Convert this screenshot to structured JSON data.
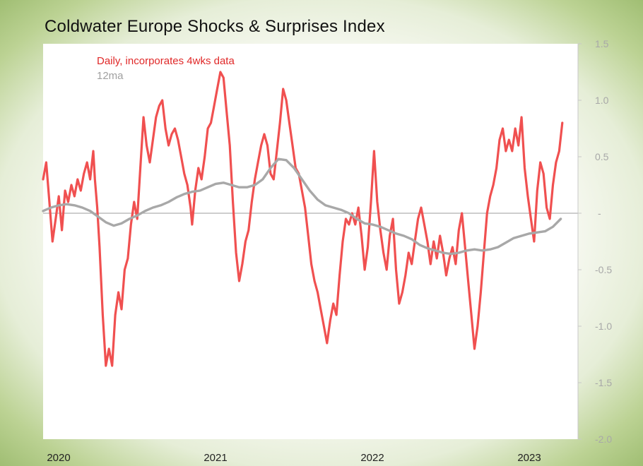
{
  "chart_data": {
    "type": "line",
    "title": "Coldwater Europe Shocks & Surprises Index",
    "ylim": [
      -2.0,
      1.5
    ],
    "y_ticks": [
      {
        "value": 1.5,
        "label": "1.5"
      },
      {
        "value": 1.0,
        "label": "1.0"
      },
      {
        "value": 0.5,
        "label": "0.5"
      },
      {
        "value": 0.0,
        "label": "-"
      },
      {
        "value": -0.5,
        "label": "-0.5"
      },
      {
        "value": -1.0,
        "label": "-1.0"
      },
      {
        "value": -1.5,
        "label": "-1.5"
      },
      {
        "value": -2.0,
        "label": "-2.0"
      }
    ],
    "x_ticks": [
      "2020",
      "2021",
      "2022",
      "2023"
    ],
    "xlim": [
      2020.0,
      2023.4
    ],
    "legend": {
      "placement": "top-left"
    },
    "series": [
      {
        "name": "Daily, incorporates 4wks data",
        "color": "#f05050",
        "points": [
          [
            2020.0,
            0.3
          ],
          [
            2020.02,
            0.45
          ],
          [
            2020.04,
            0.1
          ],
          [
            2020.06,
            -0.25
          ],
          [
            2020.08,
            -0.05
          ],
          [
            2020.1,
            0.15
          ],
          [
            2020.12,
            -0.15
          ],
          [
            2020.14,
            0.2
          ],
          [
            2020.16,
            0.1
          ],
          [
            2020.18,
            0.25
          ],
          [
            2020.2,
            0.15
          ],
          [
            2020.22,
            0.3
          ],
          [
            2020.24,
            0.2
          ],
          [
            2020.26,
            0.35
          ],
          [
            2020.28,
            0.45
          ],
          [
            2020.3,
            0.3
          ],
          [
            2020.32,
            0.55
          ],
          [
            2020.33,
            0.3
          ],
          [
            2020.345,
            0.05
          ],
          [
            2020.36,
            -0.3
          ],
          [
            2020.38,
            -0.9
          ],
          [
            2020.4,
            -1.35
          ],
          [
            2020.42,
            -1.2
          ],
          [
            2020.44,
            -1.35
          ],
          [
            2020.46,
            -0.9
          ],
          [
            2020.48,
            -0.7
          ],
          [
            2020.5,
            -0.85
          ],
          [
            2020.52,
            -0.5
          ],
          [
            2020.54,
            -0.4
          ],
          [
            2020.56,
            -0.1
          ],
          [
            2020.58,
            0.1
          ],
          [
            2020.6,
            -0.05
          ],
          [
            2020.62,
            0.4
          ],
          [
            2020.64,
            0.85
          ],
          [
            2020.66,
            0.6
          ],
          [
            2020.68,
            0.45
          ],
          [
            2020.7,
            0.65
          ],
          [
            2020.72,
            0.85
          ],
          [
            2020.74,
            0.95
          ],
          [
            2020.76,
            1.0
          ],
          [
            2020.78,
            0.75
          ],
          [
            2020.8,
            0.6
          ],
          [
            2020.82,
            0.7
          ],
          [
            2020.84,
            0.75
          ],
          [
            2020.86,
            0.65
          ],
          [
            2020.88,
            0.5
          ],
          [
            2020.9,
            0.35
          ],
          [
            2020.92,
            0.25
          ],
          [
            2020.94,
            0.05
          ],
          [
            2020.95,
            -0.1
          ],
          [
            2020.97,
            0.2
          ],
          [
            2020.99,
            0.4
          ],
          [
            2021.01,
            0.3
          ],
          [
            2021.03,
            0.5
          ],
          [
            2021.05,
            0.75
          ],
          [
            2021.07,
            0.8
          ],
          [
            2021.09,
            0.95
          ],
          [
            2021.11,
            1.1
          ],
          [
            2021.13,
            1.25
          ],
          [
            2021.15,
            1.2
          ],
          [
            2021.17,
            0.9
          ],
          [
            2021.19,
            0.6
          ],
          [
            2021.21,
            0.1
          ],
          [
            2021.23,
            -0.35
          ],
          [
            2021.25,
            -0.6
          ],
          [
            2021.27,
            -0.45
          ],
          [
            2021.29,
            -0.25
          ],
          [
            2021.31,
            -0.15
          ],
          [
            2021.33,
            0.1
          ],
          [
            2021.35,
            0.3
          ],
          [
            2021.37,
            0.45
          ],
          [
            2021.39,
            0.6
          ],
          [
            2021.41,
            0.7
          ],
          [
            2021.43,
            0.6
          ],
          [
            2021.45,
            0.35
          ],
          [
            2021.47,
            0.3
          ],
          [
            2021.49,
            0.55
          ],
          [
            2021.51,
            0.8
          ],
          [
            2021.53,
            1.1
          ],
          [
            2021.55,
            1.0
          ],
          [
            2021.57,
            0.8
          ],
          [
            2021.59,
            0.6
          ],
          [
            2021.61,
            0.4
          ],
          [
            2021.63,
            0.35
          ],
          [
            2021.65,
            0.2
          ],
          [
            2021.67,
            0.05
          ],
          [
            2021.69,
            -0.2
          ],
          [
            2021.71,
            -0.45
          ],
          [
            2021.73,
            -0.6
          ],
          [
            2021.75,
            -0.7
          ],
          [
            2021.77,
            -0.85
          ],
          [
            2021.79,
            -1.0
          ],
          [
            2021.81,
            -1.15
          ],
          [
            2021.83,
            -0.95
          ],
          [
            2021.85,
            -0.8
          ],
          [
            2021.87,
            -0.9
          ],
          [
            2021.89,
            -0.55
          ],
          [
            2021.91,
            -0.25
          ],
          [
            2021.93,
            -0.05
          ],
          [
            2021.95,
            -0.1
          ],
          [
            2021.97,
            0.0
          ],
          [
            2021.99,
            -0.1
          ],
          [
            2022.01,
            0.05
          ],
          [
            2022.03,
            -0.2
          ],
          [
            2022.05,
            -0.5
          ],
          [
            2022.07,
            -0.3
          ],
          [
            2022.09,
            0.1
          ],
          [
            2022.11,
            0.55
          ],
          [
            2022.13,
            0.1
          ],
          [
            2022.15,
            -0.15
          ],
          [
            2022.17,
            -0.35
          ],
          [
            2022.19,
            -0.5
          ],
          [
            2022.21,
            -0.2
          ],
          [
            2022.23,
            -0.05
          ],
          [
            2022.25,
            -0.5
          ],
          [
            2022.27,
            -0.8
          ],
          [
            2022.29,
            -0.7
          ],
          [
            2022.31,
            -0.55
          ],
          [
            2022.33,
            -0.35
          ],
          [
            2022.35,
            -0.45
          ],
          [
            2022.37,
            -0.25
          ],
          [
            2022.39,
            -0.05
          ],
          [
            2022.41,
            0.05
          ],
          [
            2022.43,
            -0.1
          ],
          [
            2022.45,
            -0.25
          ],
          [
            2022.47,
            -0.45
          ],
          [
            2022.49,
            -0.25
          ],
          [
            2022.51,
            -0.4
          ],
          [
            2022.53,
            -0.2
          ],
          [
            2022.55,
            -0.35
          ],
          [
            2022.57,
            -0.55
          ],
          [
            2022.59,
            -0.4
          ],
          [
            2022.61,
            -0.3
          ],
          [
            2022.63,
            -0.45
          ],
          [
            2022.65,
            -0.15
          ],
          [
            2022.67,
            0.0
          ],
          [
            2022.69,
            -0.3
          ],
          [
            2022.71,
            -0.6
          ],
          [
            2022.73,
            -0.9
          ],
          [
            2022.75,
            -1.2
          ],
          [
            2022.77,
            -1.0
          ],
          [
            2022.79,
            -0.7
          ],
          [
            2022.81,
            -0.35
          ],
          [
            2022.83,
            0.0
          ],
          [
            2022.85,
            0.15
          ],
          [
            2022.87,
            0.25
          ],
          [
            2022.89,
            0.4
          ],
          [
            2022.91,
            0.65
          ],
          [
            2022.93,
            0.75
          ],
          [
            2022.95,
            0.55
          ],
          [
            2022.97,
            0.65
          ],
          [
            2022.99,
            0.55
          ],
          [
            2023.01,
            0.75
          ],
          [
            2023.03,
            0.6
          ],
          [
            2023.05,
            0.85
          ],
          [
            2023.07,
            0.4
          ],
          [
            2023.09,
            0.15
          ],
          [
            2023.11,
            -0.05
          ],
          [
            2023.13,
            -0.25
          ],
          [
            2023.15,
            0.2
          ],
          [
            2023.17,
            0.45
          ],
          [
            2023.19,
            0.35
          ],
          [
            2023.21,
            0.05
          ],
          [
            2023.23,
            -0.05
          ],
          [
            2023.25,
            0.25
          ],
          [
            2023.27,
            0.45
          ],
          [
            2023.29,
            0.55
          ],
          [
            2023.31,
            0.8
          ]
        ]
      },
      {
        "name": "12ma",
        "color": "#a8a8a8",
        "points": [
          [
            2020.0,
            0.02
          ],
          [
            2020.05,
            0.05
          ],
          [
            2020.1,
            0.07
          ],
          [
            2020.15,
            0.08
          ],
          [
            2020.2,
            0.07
          ],
          [
            2020.25,
            0.05
          ],
          [
            2020.3,
            0.02
          ],
          [
            2020.35,
            -0.03
          ],
          [
            2020.4,
            -0.08
          ],
          [
            2020.45,
            -0.11
          ],
          [
            2020.5,
            -0.09
          ],
          [
            2020.55,
            -0.05
          ],
          [
            2020.6,
            -0.02
          ],
          [
            2020.65,
            0.02
          ],
          [
            2020.7,
            0.05
          ],
          [
            2020.75,
            0.07
          ],
          [
            2020.8,
            0.1
          ],
          [
            2020.85,
            0.14
          ],
          [
            2020.9,
            0.17
          ],
          [
            2020.95,
            0.19
          ],
          [
            2021.0,
            0.2
          ],
          [
            2021.05,
            0.23
          ],
          [
            2021.1,
            0.26
          ],
          [
            2021.15,
            0.27
          ],
          [
            2021.2,
            0.25
          ],
          [
            2021.25,
            0.23
          ],
          [
            2021.3,
            0.23
          ],
          [
            2021.35,
            0.25
          ],
          [
            2021.4,
            0.3
          ],
          [
            2021.45,
            0.4
          ],
          [
            2021.5,
            0.48
          ],
          [
            2021.55,
            0.47
          ],
          [
            2021.6,
            0.4
          ],
          [
            2021.65,
            0.3
          ],
          [
            2021.7,
            0.2
          ],
          [
            2021.75,
            0.12
          ],
          [
            2021.8,
            0.07
          ],
          [
            2021.85,
            0.05
          ],
          [
            2021.9,
            0.03
          ],
          [
            2021.95,
            0.0
          ],
          [
            2022.0,
            -0.05
          ],
          [
            2022.05,
            -0.09
          ],
          [
            2022.1,
            -0.1
          ],
          [
            2022.15,
            -0.12
          ],
          [
            2022.2,
            -0.15
          ],
          [
            2022.25,
            -0.18
          ],
          [
            2022.3,
            -0.2
          ],
          [
            2022.35,
            -0.23
          ],
          [
            2022.4,
            -0.28
          ],
          [
            2022.45,
            -0.31
          ],
          [
            2022.5,
            -0.33
          ],
          [
            2022.55,
            -0.35
          ],
          [
            2022.6,
            -0.36
          ],
          [
            2022.65,
            -0.35
          ],
          [
            2022.7,
            -0.33
          ],
          [
            2022.75,
            -0.32
          ],
          [
            2022.8,
            -0.33
          ],
          [
            2022.85,
            -0.32
          ],
          [
            2022.9,
            -0.3
          ],
          [
            2022.95,
            -0.26
          ],
          [
            2023.0,
            -0.22
          ],
          [
            2023.05,
            -0.2
          ],
          [
            2023.1,
            -0.18
          ],
          [
            2023.15,
            -0.17
          ],
          [
            2023.2,
            -0.16
          ],
          [
            2023.25,
            -0.12
          ],
          [
            2023.3,
            -0.05
          ]
        ]
      }
    ]
  }
}
